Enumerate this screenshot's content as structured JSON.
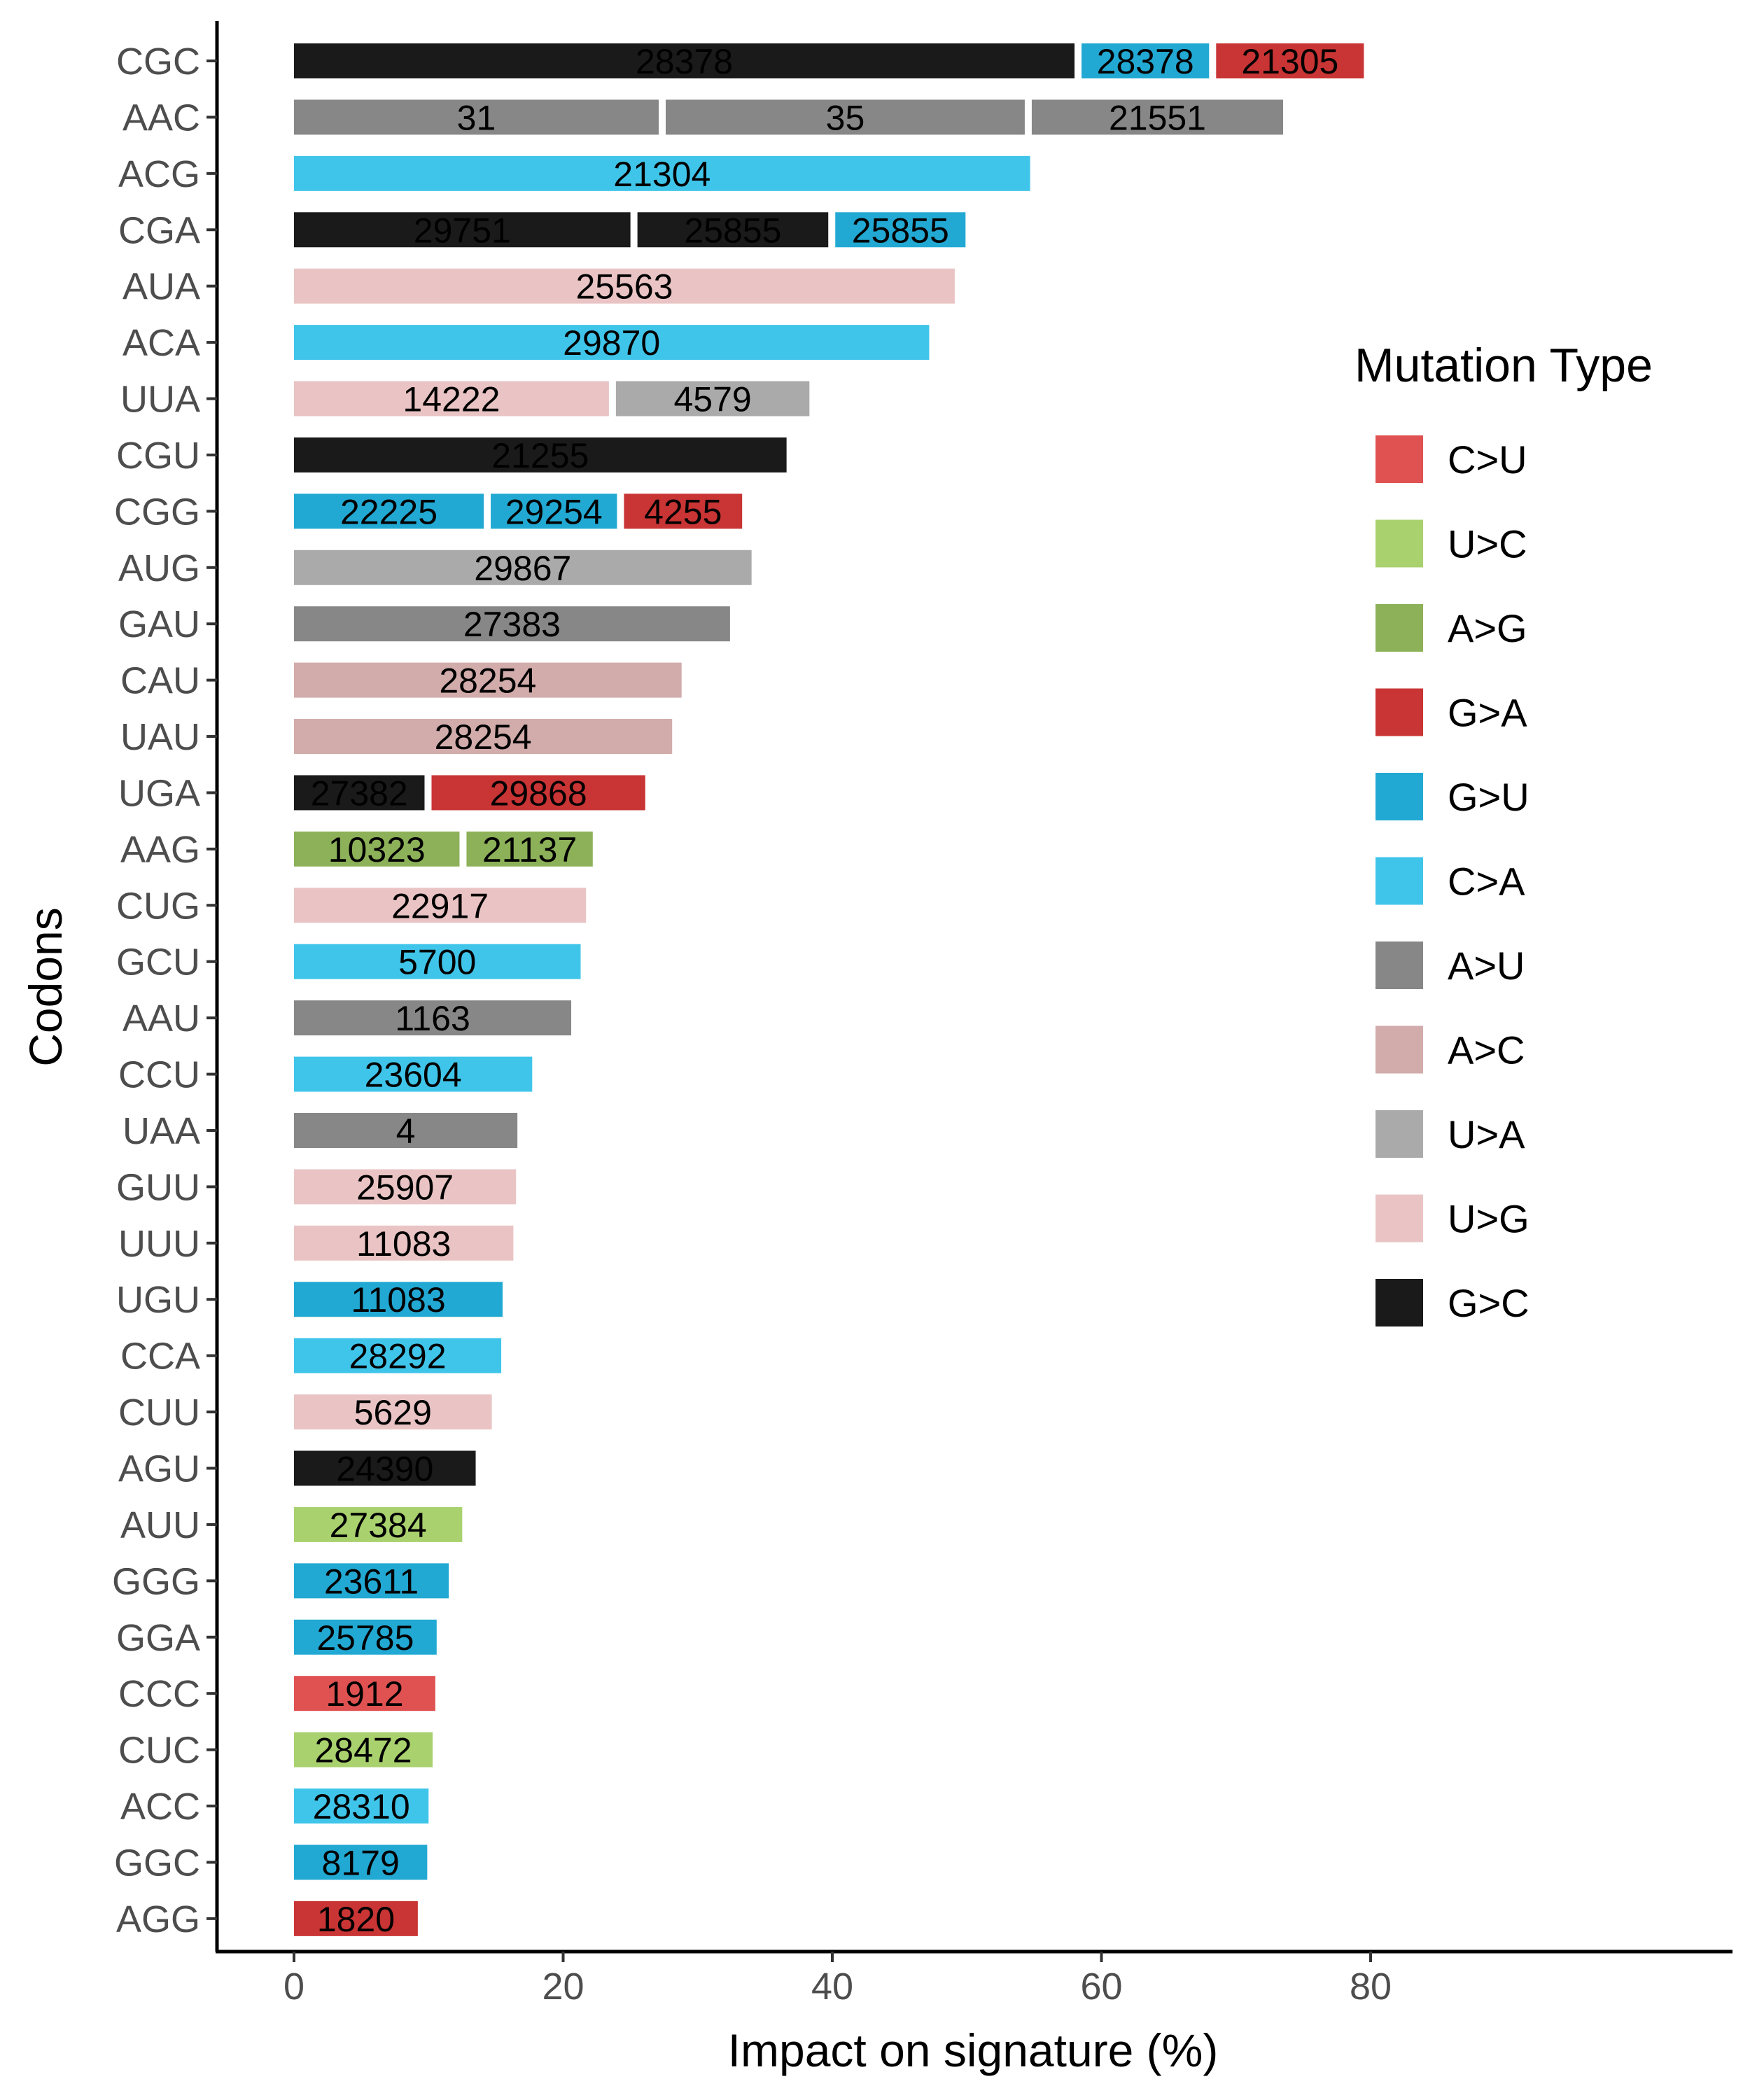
{
  "chart_data": {
    "type": "bar",
    "orientation": "horizontal",
    "stacked": true,
    "title": "",
    "xlabel": "Impact on signature (%)",
    "ylabel": "Codons",
    "xlim": [
      -10,
      86
    ],
    "xticks": [
      0,
      20,
      40,
      60,
      80
    ],
    "grid": false,
    "legend": {
      "title": "Mutation Type",
      "placement": "right",
      "entries": [
        {
          "name": "C>U",
          "color": "#E05252"
        },
        {
          "name": "U>C",
          "color": "#A9D16E"
        },
        {
          "name": "A>G",
          "color": "#8DB158"
        },
        {
          "name": "G>A",
          "color": "#C93434"
        },
        {
          "name": "G>U",
          "color": "#22A9D3"
        },
        {
          "name": "C>A",
          "color": "#40C5EA"
        },
        {
          "name": "A>U",
          "color": "#878787"
        },
        {
          "name": "A>C",
          "color": "#D2ABAB"
        },
        {
          "name": "U>A",
          "color": "#AAAAAA"
        },
        {
          "name": "U>G",
          "color": "#EAC4C4"
        },
        {
          "name": "G>C",
          "color": "#1A1A1A"
        }
      ]
    },
    "categories": [
      "CGC",
      "AAC",
      "ACG",
      "CGA",
      "AUA",
      "ACA",
      "UUA",
      "CGU",
      "CGG",
      "AUG",
      "GAU",
      "CAU",
      "UAU",
      "UGA",
      "AAG",
      "CUG",
      "GCU",
      "AAU",
      "CCU",
      "UAA",
      "GUU",
      "UUU",
      "UGU",
      "CCA",
      "CUU",
      "AGU",
      "AUU",
      "GGG",
      "GGA",
      "CCC",
      "CUC",
      "ACC",
      "GGC",
      "AGG"
    ],
    "bars": [
      {
        "codon": "CGC",
        "segments": [
          {
            "position": "28378",
            "type": "G>C",
            "value": 58
          },
          {
            "position": "28378",
            "type": "G>U",
            "value": 10
          },
          {
            "position": "21305",
            "type": "G>A",
            "value": 11.5
          }
        ]
      },
      {
        "codon": "AAC",
        "segments": [
          {
            "position": "31",
            "type": "A>U",
            "value": 27.1
          },
          {
            "position": "35",
            "type": "A>U",
            "value": 27.2
          },
          {
            "position": "21551",
            "type": "A>U",
            "value": 19.2
          }
        ]
      },
      {
        "codon": "ACG",
        "segments": [
          {
            "position": "21304",
            "type": "C>A",
            "value": 54.7
          }
        ]
      },
      {
        "codon": "CGA",
        "segments": [
          {
            "position": "29751",
            "type": "G>C",
            "value": 25
          },
          {
            "position": "25855",
            "type": "G>C",
            "value": 14.7
          },
          {
            "position": "25855",
            "type": "G>U",
            "value": 10.2
          }
        ]
      },
      {
        "codon": "AUA",
        "segments": [
          {
            "position": "25563",
            "type": "U>G",
            "value": 49.1
          }
        ]
      },
      {
        "codon": "ACA",
        "segments": [
          {
            "position": "29870",
            "type": "C>A",
            "value": 47.2
          }
        ]
      },
      {
        "codon": "UUA",
        "segments": [
          {
            "position": "14222",
            "type": "U>G",
            "value": 23.4
          },
          {
            "position": "4579",
            "type": "U>A",
            "value": 14.9
          }
        ]
      },
      {
        "codon": "CGU",
        "segments": [
          {
            "position": "21255",
            "type": "G>C",
            "value": 36.6
          }
        ]
      },
      {
        "codon": "CGG",
        "segments": [
          {
            "position": "22225",
            "type": "G>U",
            "value": 14.1
          },
          {
            "position": "29254",
            "type": "G>U",
            "value": 9.9
          },
          {
            "position": "4255",
            "type": "G>A",
            "value": 9.3
          }
        ]
      },
      {
        "codon": "AUG",
        "segments": [
          {
            "position": "29867",
            "type": "U>A",
            "value": 34
          }
        ]
      },
      {
        "codon": "GAU",
        "segments": [
          {
            "position": "27383",
            "type": "A>U",
            "value": 32.4
          }
        ]
      },
      {
        "codon": "CAU",
        "segments": [
          {
            "position": "28254",
            "type": "A>C",
            "value": 28.8
          }
        ]
      },
      {
        "codon": "UAU",
        "segments": [
          {
            "position": "28254",
            "type": "A>C",
            "value": 28.1
          }
        ]
      },
      {
        "codon": "UGA",
        "segments": [
          {
            "position": "27382",
            "type": "G>C",
            "value": 9.7
          },
          {
            "position": "29868",
            "type": "G>A",
            "value": 16.4
          }
        ]
      },
      {
        "codon": "AAG",
        "segments": [
          {
            "position": "10323",
            "type": "A>G",
            "value": 12.3
          },
          {
            "position": "21137",
            "type": "A>G",
            "value": 9.9
          }
        ]
      },
      {
        "codon": "CUG",
        "segments": [
          {
            "position": "22917",
            "type": "U>G",
            "value": 21.7
          }
        ]
      },
      {
        "codon": "GCU",
        "segments": [
          {
            "position": "5700",
            "type": "C>A",
            "value": 21.3
          }
        ]
      },
      {
        "codon": "AAU",
        "segments": [
          {
            "position": "1163",
            "type": "A>U",
            "value": 20.6
          }
        ]
      },
      {
        "codon": "CCU",
        "segments": [
          {
            "position": "23604",
            "type": "C>A",
            "value": 17.7
          }
        ]
      },
      {
        "codon": "UAA",
        "segments": [
          {
            "position": "4",
            "type": "A>U",
            "value": 16.6
          }
        ]
      },
      {
        "codon": "GUU",
        "segments": [
          {
            "position": "25907",
            "type": "U>G",
            "value": 16.5
          }
        ]
      },
      {
        "codon": "UUU",
        "segments": [
          {
            "position": "11083",
            "type": "U>G",
            "value": 16.3
          }
        ]
      },
      {
        "codon": "UGU",
        "segments": [
          {
            "position": "11083",
            "type": "G>U",
            "value": 15.5
          }
        ]
      },
      {
        "codon": "CCA",
        "segments": [
          {
            "position": "28292",
            "type": "C>A",
            "value": 15.4
          }
        ]
      },
      {
        "codon": "CUU",
        "segments": [
          {
            "position": "5629",
            "type": "U>G",
            "value": 14.7
          }
        ]
      },
      {
        "codon": "AGU",
        "segments": [
          {
            "position": "24390",
            "type": "G>C",
            "value": 13.5
          }
        ]
      },
      {
        "codon": "AUU",
        "segments": [
          {
            "position": "27384",
            "type": "U>C",
            "value": 12.5
          }
        ]
      },
      {
        "codon": "GGG",
        "segments": [
          {
            "position": "23611",
            "type": "G>U",
            "value": 11.5
          }
        ]
      },
      {
        "codon": "GGA",
        "segments": [
          {
            "position": "25785",
            "type": "G>U",
            "value": 10.6
          }
        ]
      },
      {
        "codon": "CCC",
        "segments": [
          {
            "position": "1912",
            "type": "C>U",
            "value": 10.5
          }
        ]
      },
      {
        "codon": "CUC",
        "segments": [
          {
            "position": "28472",
            "type": "U>C",
            "value": 10.3
          }
        ]
      },
      {
        "codon": "ACC",
        "segments": [
          {
            "position": "28310",
            "type": "C>A",
            "value": 10
          }
        ]
      },
      {
        "codon": "GGC",
        "segments": [
          {
            "position": "8179",
            "type": "G>U",
            "value": 9.9
          }
        ]
      },
      {
        "codon": "AGG",
        "segments": [
          {
            "position": "1820",
            "type": "G>A",
            "value": 9.2
          }
        ]
      }
    ]
  }
}
